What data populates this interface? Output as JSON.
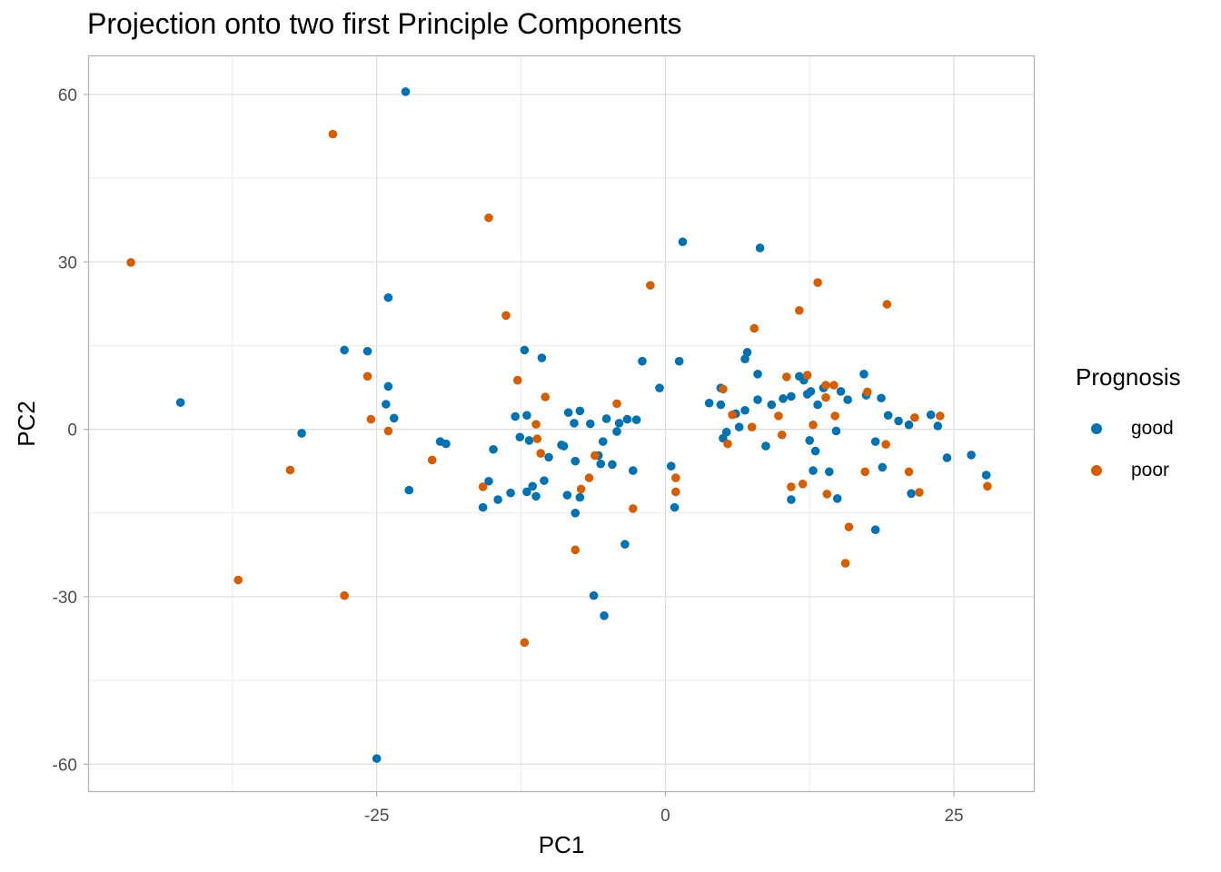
{
  "chart_data": {
    "type": "scatter",
    "title": "Projection onto two first Principle Components",
    "xlabel": "PC1",
    "ylabel": "PC2",
    "xlim": [
      -50,
      32
    ],
    "ylim": [
      -65,
      67
    ],
    "x_ticks": [
      -25,
      0,
      25
    ],
    "x_tick_labels": [
      "-25",
      "0",
      "25"
    ],
    "y_ticks": [
      -60,
      -30,
      0,
      30,
      60
    ],
    "y_tick_labels": [
      "-60",
      "-30",
      "0",
      "30",
      "60"
    ],
    "grid": true,
    "legend": {
      "title": "Prognosis",
      "position": "right"
    },
    "series": [
      {
        "name": "good",
        "color": "#0072B2",
        "points": [
          [
            -22.5,
            60.5
          ],
          [
            -42,
            4.8
          ],
          [
            -31.5,
            -0.7
          ],
          [
            -27.8,
            14.2
          ],
          [
            -25.8,
            14
          ],
          [
            -24,
            23.6
          ],
          [
            -24,
            7.7
          ],
          [
            -24.2,
            4.5
          ],
          [
            -23.5,
            2
          ],
          [
            -22.2,
            -10.9
          ],
          [
            -25,
            -59
          ],
          [
            -19.5,
            -2.2
          ],
          [
            -19,
            -2.6
          ],
          [
            -15.8,
            -14
          ],
          [
            -15.3,
            -9.3
          ],
          [
            -14.5,
            -12.6
          ],
          [
            -14.9,
            -3.6
          ],
          [
            -13.4,
            -11.4
          ],
          [
            -13,
            2.3
          ],
          [
            -12.6,
            -1.4
          ],
          [
            -12.2,
            14.2
          ],
          [
            -12,
            2.5
          ],
          [
            -11.8,
            -2
          ],
          [
            -12,
            -11.2
          ],
          [
            -11.5,
            -10.2
          ],
          [
            -11.2,
            -12
          ],
          [
            -10.7,
            12.8
          ],
          [
            -10.5,
            -9.2
          ],
          [
            -10.1,
            -5
          ],
          [
            -9,
            -2.8
          ],
          [
            -8.8,
            -3
          ],
          [
            -8.5,
            -11.8
          ],
          [
            -8.4,
            3
          ],
          [
            -7.9,
            1.1
          ],
          [
            -7.8,
            -15
          ],
          [
            -7.8,
            -5.7
          ],
          [
            -7.4,
            3.3
          ],
          [
            -7.4,
            -12.2
          ],
          [
            -6.5,
            1
          ],
          [
            -6.2,
            -29.8
          ],
          [
            -5.8,
            -4.7
          ],
          [
            -5.6,
            -6.2
          ],
          [
            -5.3,
            -33.4
          ],
          [
            -5.4,
            -2.2
          ],
          [
            -5.1,
            1.9
          ],
          [
            -4.6,
            -6.3
          ],
          [
            -4.2,
            -0.4
          ],
          [
            -4,
            1.1
          ],
          [
            -3.5,
            -20.6
          ],
          [
            -3.3,
            1.8
          ],
          [
            -2.8,
            -7.4
          ],
          [
            -2.5,
            1.7
          ],
          [
            -2,
            12.2
          ],
          [
            -0.5,
            7.4
          ],
          [
            0.5,
            -6.6
          ],
          [
            0.8,
            -14
          ],
          [
            1.2,
            12.2
          ],
          [
            1.5,
            33.6
          ],
          [
            3.8,
            4.7
          ],
          [
            4.8,
            7.4
          ],
          [
            4.8,
            4.4
          ],
          [
            5,
            -1.6
          ],
          [
            5.3,
            -0.5
          ],
          [
            6.1,
            2.8
          ],
          [
            6.4,
            0.4
          ],
          [
            6.9,
            3.4
          ],
          [
            6.9,
            12.6
          ],
          [
            7.1,
            13.8
          ],
          [
            8,
            9.9
          ],
          [
            8,
            5.3
          ],
          [
            8.2,
            32.5
          ],
          [
            8.7,
            -3
          ],
          [
            9.2,
            4.4
          ],
          [
            10.2,
            5.5
          ],
          [
            10.9,
            5.9
          ],
          [
            10.9,
            -12.6
          ],
          [
            11.6,
            9.5
          ],
          [
            12,
            8.8
          ],
          [
            12.3,
            6.3
          ],
          [
            12.5,
            -2
          ],
          [
            12.6,
            6.8
          ],
          [
            12.8,
            -7.4
          ],
          [
            13,
            -3.9
          ],
          [
            13.2,
            4.4
          ],
          [
            13.7,
            7.4
          ],
          [
            14.2,
            -7.6
          ],
          [
            14.8,
            -0.3
          ],
          [
            14.9,
            -12.4
          ],
          [
            15.2,
            6.8
          ],
          [
            15.8,
            5.3
          ],
          [
            17.2,
            9.9
          ],
          [
            17.4,
            6.1
          ],
          [
            18.2,
            -2.2
          ],
          [
            18.2,
            -18
          ],
          [
            18.7,
            5.6
          ],
          [
            18.8,
            -6.8
          ],
          [
            19.3,
            2.5
          ],
          [
            20.2,
            1.5
          ],
          [
            21.1,
            0.8
          ],
          [
            21.3,
            -11.5
          ],
          [
            23,
            2.6
          ],
          [
            23.6,
            0.6
          ],
          [
            24.4,
            -5.1
          ],
          [
            26.5,
            -4.6
          ],
          [
            27.8,
            -8.2
          ]
        ]
      },
      {
        "name": "poor",
        "color": "#D55E00",
        "points": [
          [
            -46.3,
            29.9
          ],
          [
            -28.8,
            52.9
          ],
          [
            -37,
            -27
          ],
          [
            -32.5,
            -7.3
          ],
          [
            -27.8,
            -29.8
          ],
          [
            -25.8,
            9.5
          ],
          [
            -25.5,
            1.8
          ],
          [
            -24,
            -0.3
          ],
          [
            -20.2,
            -5.5
          ],
          [
            -15.8,
            -10.3
          ],
          [
            -15.3,
            37.9
          ],
          [
            -13.8,
            20.4
          ],
          [
            -12.8,
            8.8
          ],
          [
            -12.2,
            -38.2
          ],
          [
            -11.2,
            0.9
          ],
          [
            -11.1,
            -1.7
          ],
          [
            -10.8,
            -4.3
          ],
          [
            -10.4,
            5.8
          ],
          [
            -7.8,
            -21.6
          ],
          [
            -7.3,
            -10.7
          ],
          [
            -6.6,
            -8.7
          ],
          [
            -6.1,
            -4.7
          ],
          [
            -4.2,
            4.6
          ],
          [
            -2.8,
            -14.2
          ],
          [
            -1.3,
            25.8
          ],
          [
            0.9,
            -8.7
          ],
          [
            0.9,
            -11.2
          ],
          [
            5,
            7.2
          ],
          [
            5.4,
            -2.6
          ],
          [
            5.8,
            2.6
          ],
          [
            7.5,
            0.4
          ],
          [
            7.7,
            18.1
          ],
          [
            9.8,
            2.4
          ],
          [
            10.1,
            -1
          ],
          [
            10.5,
            9.4
          ],
          [
            10.9,
            -10.3
          ],
          [
            11.6,
            21.3
          ],
          [
            11.9,
            -9.8
          ],
          [
            12.3,
            9.7
          ],
          [
            12.8,
            0.8
          ],
          [
            13.2,
            26.3
          ],
          [
            13.9,
            7.9
          ],
          [
            13.9,
            5.7
          ],
          [
            14,
            -11.6
          ],
          [
            14.6,
            7.9
          ],
          [
            14.7,
            2.4
          ],
          [
            15.6,
            -24
          ],
          [
            15.9,
            -17.5
          ],
          [
            17.3,
            -7.6
          ],
          [
            17.5,
            6.7
          ],
          [
            19.1,
            -2.7
          ],
          [
            19.2,
            22.4
          ],
          [
            21.1,
            -7.6
          ],
          [
            21.6,
            2.1
          ],
          [
            22,
            -11.3
          ],
          [
            23.8,
            2.4
          ],
          [
            27.9,
            -10.2
          ]
        ]
      }
    ]
  }
}
